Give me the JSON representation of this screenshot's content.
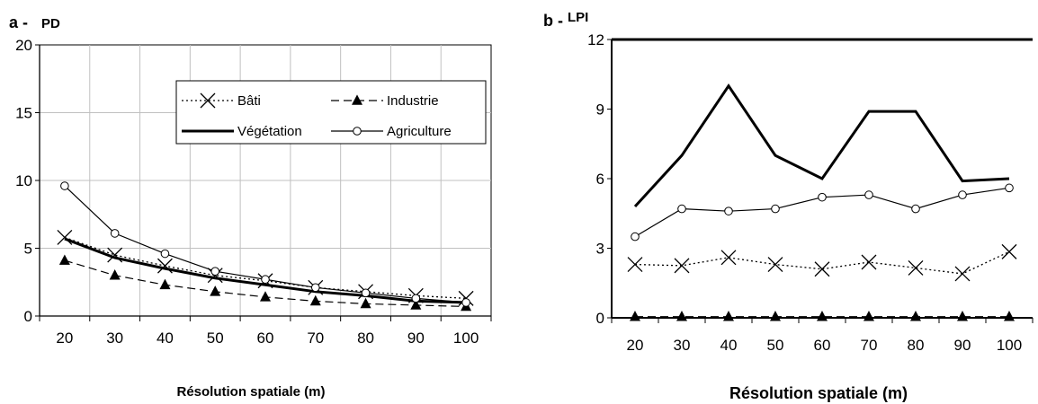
{
  "chart_data": [
    {
      "id": "a",
      "type": "line",
      "panel_letter": "a -",
      "title": "PD",
      "xlabel": "Résolution spatiale (m)",
      "ylabel": "",
      "x": [
        20,
        30,
        40,
        50,
        60,
        70,
        80,
        90,
        100
      ],
      "ylim": [
        0,
        20
      ],
      "yticks": [
        0,
        5,
        10,
        15,
        20
      ],
      "grid": true,
      "legend_position": "top-right inside",
      "series": [
        {
          "name": "Bâti",
          "style": "dotted",
          "marker": "x",
          "values": [
            5.8,
            4.5,
            3.7,
            3.0,
            2.6,
            2.1,
            1.8,
            1.5,
            1.3
          ]
        },
        {
          "name": "Industrie",
          "style": "dashed",
          "marker": "triangle",
          "values": [
            4.1,
            3.0,
            2.3,
            1.8,
            1.4,
            1.1,
            0.9,
            0.8,
            0.7
          ]
        },
        {
          "name": "Végétation",
          "style": "thick",
          "marker": "none",
          "values": [
            5.7,
            4.3,
            3.5,
            2.8,
            2.3,
            1.8,
            1.5,
            1.1,
            1.0
          ]
        },
        {
          "name": "Agriculture",
          "style": "solid",
          "marker": "circle",
          "values": [
            9.6,
            6.1,
            4.6,
            3.3,
            2.7,
            2.1,
            1.7,
            1.3,
            1.0
          ]
        }
      ]
    },
    {
      "id": "b",
      "type": "line",
      "panel_letter": "b -",
      "title": "LPI",
      "xlabel": "Résolution spatiale (m)",
      "ylabel": "",
      "x": [
        20,
        30,
        40,
        50,
        60,
        70,
        80,
        90,
        100
      ],
      "ylim": [
        0,
        12
      ],
      "yticks": [
        0,
        3,
        6,
        9,
        12
      ],
      "grid": false,
      "series": [
        {
          "name": "Bâti",
          "style": "dotted",
          "marker": "x",
          "values": [
            2.3,
            2.25,
            2.6,
            2.3,
            2.1,
            2.4,
            2.15,
            1.9,
            2.85
          ]
        },
        {
          "name": "Industrie",
          "style": "dashed",
          "marker": "triangle",
          "values": [
            0.05,
            0.05,
            0.05,
            0.05,
            0.05,
            0.05,
            0.05,
            0.05,
            0.05
          ]
        },
        {
          "name": "Végétation",
          "style": "thick",
          "marker": "none",
          "values": [
            4.8,
            7.0,
            10.0,
            7.0,
            6.0,
            8.9,
            8.9,
            5.9,
            6.0
          ]
        },
        {
          "name": "Agriculture",
          "style": "solid",
          "marker": "circle",
          "values": [
            3.5,
            4.7,
            4.6,
            4.7,
            5.2,
            5.3,
            4.7,
            5.3,
            5.6
          ]
        }
      ]
    }
  ]
}
